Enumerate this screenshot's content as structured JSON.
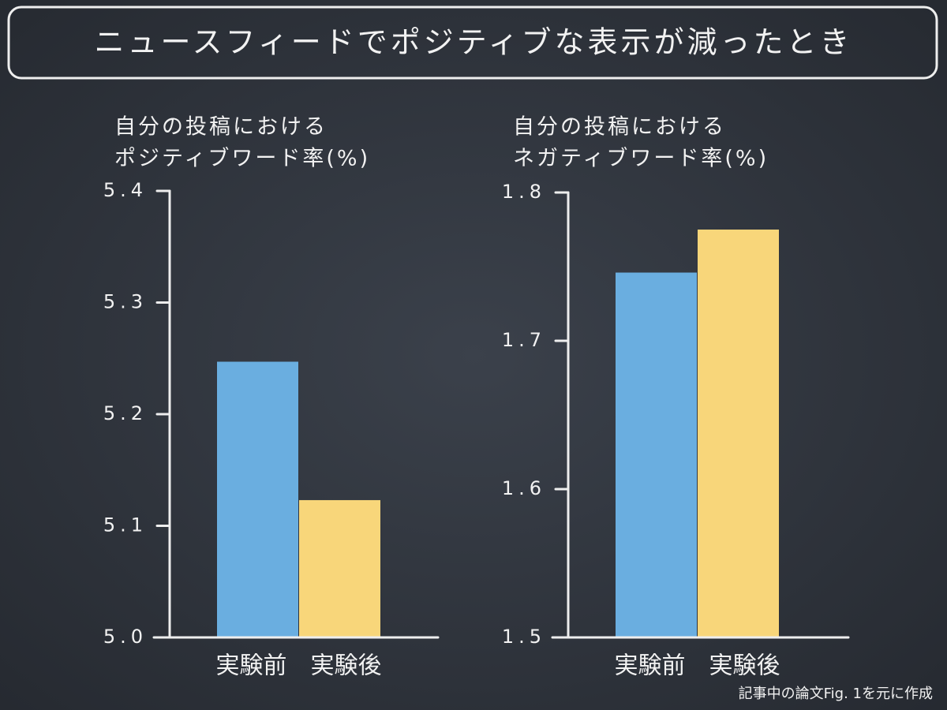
{
  "title": "ニュースフィードでポジティブな表示が減ったとき",
  "chart_data": [
    {
      "type": "bar",
      "ylabel": [
        "自分の投稿における",
        "ポジティブワード率(%)"
      ],
      "categories": [
        "実験前",
        "実験後"
      ],
      "values": [
        5.247,
        5.123
      ],
      "colors": [
        "#6aaee0",
        "#f8d67a"
      ],
      "ylim": [
        5.0,
        5.4
      ],
      "yticks": [
        {
          "value": 5.0,
          "label": "5.0"
        },
        5.1,
        5.2,
        5.3,
        5.4
      ]
    },
    {
      "type": "bar",
      "ylabel": [
        "自分の投稿における",
        "ネガティブワード率(%)"
      ],
      "categories": [
        "実験前",
        "実験後"
      ],
      "values": [
        1.746,
        1.775
      ],
      "colors": [
        "#6aaee0",
        "#f8d67a"
      ],
      "ylim": [
        1.5,
        1.8
      ],
      "yticks": [
        1.5,
        1.6,
        1.7,
        1.8
      ]
    }
  ],
  "footnote": "記事中の論文Fig. 1を元に作成"
}
